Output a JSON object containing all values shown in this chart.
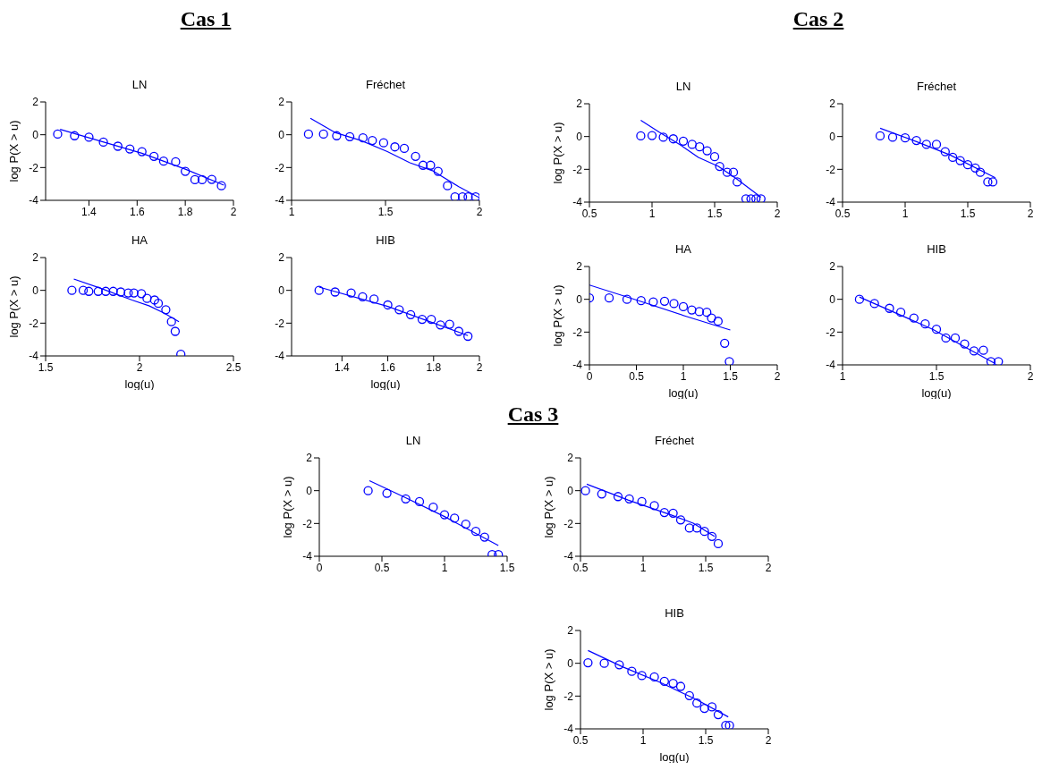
{
  "chart_data": [
    {
      "type": "scatter",
      "title": "LN",
      "ylabel": "log P(X > u)",
      "annotations": [
        "Cas 1"
      ],
      "xlim": [
        1.22,
        2
      ],
      "xticks": [
        1.4,
        1.6,
        1.8,
        2
      ],
      "ylim": [
        -4,
        2
      ],
      "yticks": [
        -4,
        -2,
        0,
        2
      ],
      "series": [
        {
          "type": "scatter",
          "marker": "circle",
          "color": "#0000ff",
          "x": [
            1.27,
            1.34,
            1.4,
            1.46,
            1.52,
            1.57,
            1.62,
            1.67,
            1.71,
            1.76,
            1.8,
            1.84,
            1.87,
            1.91,
            1.95
          ],
          "values": [
            0.04,
            -0.06,
            -0.15,
            -0.45,
            -0.7,
            -0.87,
            -1.03,
            -1.32,
            -1.61,
            -1.65,
            -2.23,
            -2.74,
            -2.74,
            -2.72,
            -3.11
          ]
        },
        {
          "type": "line",
          "marker": "none",
          "color": "#0000ff",
          "x": [
            1.28,
            1.62,
            1.8,
            1.96
          ],
          "values": [
            0.33,
            -1.13,
            -2.1,
            -3.07
          ]
        }
      ]
    },
    {
      "type": "scatter",
      "title": "Fréchet",
      "xlim": [
        1,
        2
      ],
      "xticks": [
        1,
        1.5,
        2
      ],
      "ylim": [
        -4,
        2
      ],
      "yticks": [
        -4,
        -2,
        0,
        2
      ],
      "series": [
        {
          "type": "scatter",
          "marker": "circle",
          "color": "#0000ff",
          "x": [
            1.09,
            1.17,
            1.24,
            1.31,
            1.38,
            1.43,
            1.49,
            1.55,
            1.6,
            1.66,
            1.7,
            1.74,
            1.78,
            1.83,
            1.87,
            1.91,
            1.94,
            1.98
          ],
          "values": [
            0.04,
            0.04,
            -0.06,
            -0.12,
            -0.19,
            -0.35,
            -0.49,
            -0.74,
            -0.83,
            -1.32,
            -1.86,
            -1.86,
            -2.23,
            -3.11,
            -3.79,
            -3.79,
            -3.79,
            -3.79
          ]
        },
        {
          "type": "line",
          "marker": "none",
          "color": "#0000ff",
          "x": [
            1.1,
            1.23,
            1.37,
            1.51,
            1.63,
            1.75,
            1.89,
            2.0
          ],
          "values": [
            1.01,
            0.14,
            -0.35,
            -1.03,
            -1.71,
            -2.19,
            -3.17,
            -3.84
          ]
        }
      ]
    },
    {
      "type": "scatter",
      "title": "HA",
      "xlabel": "log(u)",
      "ylabel": "log P(X > u)",
      "xlim": [
        1.5,
        2.5
      ],
      "xticks": [
        1.5,
        2,
        2.5
      ],
      "ylim": [
        -4,
        2
      ],
      "yticks": [
        -4,
        -2,
        0,
        2
      ],
      "series": [
        {
          "type": "scatter",
          "marker": "circle",
          "color": "#0000ff",
          "x": [
            1.64,
            1.7,
            1.73,
            1.78,
            1.82,
            1.86,
            1.9,
            1.94,
            1.97,
            2.01,
            2.04,
            2.08,
            2.1,
            2.14,
            2.17,
            2.19,
            2.22
          ],
          "values": [
            0,
            0,
            -0.06,
            -0.06,
            -0.06,
            -0.06,
            -0.1,
            -0.16,
            -0.16,
            -0.2,
            -0.49,
            -0.59,
            -0.79,
            -1.18,
            -1.91,
            -2.5,
            -3.9
          ]
        },
        {
          "type": "line",
          "marker": "none",
          "color": "#0000ff",
          "x": [
            1.65,
            1.79,
            1.96,
            2.05,
            2.13,
            2.21
          ],
          "values": [
            0.69,
            0.14,
            -0.59,
            -0.94,
            -1.38,
            -1.91
          ]
        }
      ]
    },
    {
      "type": "scatter",
      "title": "HIB",
      "xlabel": "log(u)",
      "xlim": [
        1.18,
        2
      ],
      "xticks": [
        1.4,
        1.6,
        1.8,
        2
      ],
      "ylim": [
        -4,
        2
      ],
      "yticks": [
        -4,
        -2,
        0,
        2
      ],
      "series": [
        {
          "type": "scatter",
          "marker": "circle",
          "color": "#0000ff",
          "x": [
            1.3,
            1.37,
            1.44,
            1.49,
            1.54,
            1.6,
            1.65,
            1.7,
            1.75,
            1.79,
            1.83,
            1.87,
            1.91,
            1.95
          ],
          "values": [
            0,
            -0.1,
            -0.16,
            -0.39,
            -0.53,
            -0.89,
            -1.18,
            -1.48,
            -1.77,
            -1.77,
            -2.11,
            -2.07,
            -2.5,
            -2.8
          ]
        },
        {
          "type": "line",
          "marker": "none",
          "color": "#0000ff",
          "x": [
            1.3,
            1.6,
            1.95
          ],
          "values": [
            0.2,
            -0.98,
            -2.76
          ]
        }
      ]
    },
    {
      "type": "scatter",
      "title": "LN",
      "ylabel": "log P(X > u)",
      "annotations": [
        "Cas 2"
      ],
      "xlim": [
        0.5,
        2
      ],
      "xticks": [
        0.5,
        1,
        1.5,
        2
      ],
      "ylim": [
        -4,
        2
      ],
      "yticks": [
        -4,
        -2,
        0,
        2
      ],
      "series": [
        {
          "type": "scatter",
          "marker": "circle",
          "color": "#0000ff",
          "x": [
            0.91,
            1.0,
            1.09,
            1.17,
            1.25,
            1.32,
            1.38,
            1.44,
            1.5,
            1.54,
            1.6,
            1.65,
            1.68,
            1.75,
            1.79,
            1.83,
            1.87
          ],
          "values": [
            0.04,
            0.06,
            -0.04,
            -0.14,
            -0.28,
            -0.48,
            -0.63,
            -0.87,
            -1.23,
            -1.82,
            -2.18,
            -2.18,
            -2.77,
            -3.8,
            -3.8,
            -3.8,
            -3.8
          ]
        },
        {
          "type": "line",
          "marker": "none",
          "color": "#0000ff",
          "x": [
            0.91,
            1.06,
            1.22,
            1.37,
            1.53,
            1.68,
            1.87
          ],
          "values": [
            0.99,
            0.26,
            -0.48,
            -1.27,
            -1.82,
            -2.61,
            -3.7
          ]
        }
      ]
    },
    {
      "type": "scatter",
      "title": "Fréchet",
      "xlim": [
        0.5,
        2
      ],
      "xticks": [
        0.5,
        1,
        1.5,
        2
      ],
      "ylim": [
        -4,
        2
      ],
      "yticks": [
        -4,
        -2,
        0,
        2
      ],
      "series": [
        {
          "type": "scatter",
          "marker": "circle",
          "color": "#0000ff",
          "x": [
            0.8,
            0.9,
            1.0,
            1.09,
            1.17,
            1.25,
            1.32,
            1.38,
            1.44,
            1.5,
            1.56,
            1.6,
            1.66,
            1.7
          ],
          "values": [
            0.04,
            -0.04,
            -0.08,
            -0.24,
            -0.48,
            -0.48,
            -0.93,
            -1.27,
            -1.47,
            -1.72,
            -1.92,
            -2.18,
            -2.77,
            -2.77
          ]
        },
        {
          "type": "line",
          "marker": "none",
          "color": "#0000ff",
          "x": [
            0.8,
            1.1,
            1.36,
            1.72
          ],
          "values": [
            0.51,
            -0.34,
            -1.13,
            -2.51
          ]
        }
      ]
    },
    {
      "type": "scatter",
      "title": "HA",
      "xlabel": "log(u)",
      "ylabel": "log P(X > u)",
      "xlim": [
        0,
        2
      ],
      "xticks": [
        0,
        0.5,
        1,
        1.5,
        2
      ],
      "ylim": [
        -4,
        2
      ],
      "yticks": [
        -4,
        -2,
        0,
        2
      ],
      "series": [
        {
          "type": "scatter",
          "marker": "circle",
          "color": "#0000ff",
          "x": [
            0,
            0.21,
            0.4,
            0.55,
            0.68,
            0.8,
            0.9,
            1.0,
            1.09,
            1.17,
            1.25,
            1.3,
            1.37,
            1.44,
            1.49
          ],
          "values": [
            0.08,
            0.08,
            0,
            -0.08,
            -0.16,
            -0.12,
            -0.26,
            -0.45,
            -0.65,
            -0.75,
            -0.79,
            -1.14,
            -1.34,
            -2.68,
            -3.8
          ]
        },
        {
          "type": "line",
          "marker": "none",
          "color": "#0000ff",
          "x": [
            0,
            0.51,
            1.03,
            1.5
          ],
          "values": [
            0.87,
            -0.06,
            -1.04,
            -1.87
          ]
        }
      ]
    },
    {
      "type": "scatter",
      "title": "HIB",
      "xlabel": "log(u)",
      "xlim": [
        1,
        2
      ],
      "xticks": [
        1,
        1.5,
        2
      ],
      "ylim": [
        -4,
        2
      ],
      "yticks": [
        -4,
        -2,
        0,
        2
      ],
      "series": [
        {
          "type": "scatter",
          "marker": "circle",
          "color": "#0000ff",
          "x": [
            1.09,
            1.17,
            1.25,
            1.31,
            1.38,
            1.44,
            1.5,
            1.55,
            1.6,
            1.65,
            1.7,
            1.75,
            1.79,
            1.83
          ],
          "values": [
            0,
            -0.26,
            -0.55,
            -0.79,
            -1.14,
            -1.5,
            -1.83,
            -2.36,
            -2.36,
            -2.72,
            -3.15,
            -3.11,
            -3.8,
            -3.8
          ]
        },
        {
          "type": "line",
          "marker": "none",
          "color": "#0000ff",
          "x": [
            1.09,
            1.48,
            1.81
          ],
          "values": [
            0.14,
            -1.83,
            -3.9
          ]
        }
      ]
    },
    {
      "type": "scatter",
      "title": "LN",
      "ylabel": "log P(X > u)",
      "annotations": [
        "Cas 3"
      ],
      "xlim": [
        0,
        1.5
      ],
      "xticks": [
        0,
        0.5,
        1,
        1.5
      ],
      "ylim": [
        -4,
        2
      ],
      "yticks": [
        -4,
        -2,
        0,
        2
      ],
      "series": [
        {
          "type": "scatter",
          "marker": "circle",
          "color": "#0000ff",
          "x": [
            0.39,
            0.54,
            0.69,
            0.8,
            0.91,
            1.0,
            1.08,
            1.17,
            1.25,
            1.32,
            1.38,
            1.43
          ],
          "values": [
            0,
            -0.16,
            -0.5,
            -0.67,
            -1.01,
            -1.47,
            -1.68,
            -2.04,
            -2.48,
            -2.83,
            -3.9,
            -3.9
          ]
        },
        {
          "type": "line",
          "marker": "none",
          "color": "#0000ff",
          "x": [
            0.4,
            0.67,
            1.0,
            1.43
          ],
          "values": [
            0.61,
            -0.36,
            -1.58,
            -3.35
          ]
        }
      ]
    },
    {
      "type": "scatter",
      "title": "Fréchet",
      "ylabel": "log P(X > u)",
      "xlim": [
        0.5,
        2
      ],
      "xticks": [
        0.5,
        1,
        1.5,
        2
      ],
      "ylim": [
        -4,
        2
      ],
      "yticks": [
        -4,
        -2,
        0,
        2
      ],
      "series": [
        {
          "type": "scatter",
          "marker": "circle",
          "color": "#0000ff",
          "x": [
            0.54,
            0.67,
            0.8,
            0.89,
            0.99,
            1.09,
            1.17,
            1.24,
            1.3,
            1.37,
            1.43,
            1.49,
            1.55,
            1.6
          ],
          "values": [
            0,
            -0.2,
            -0.36,
            -0.5,
            -0.67,
            -0.91,
            -1.33,
            -1.37,
            -1.78,
            -2.28,
            -2.28,
            -2.48,
            -2.79,
            -3.23
          ]
        },
        {
          "type": "line",
          "marker": "none",
          "color": "#0000ff",
          "x": [
            0.55,
            0.88,
            1.22,
            1.4,
            1.57
          ],
          "values": [
            0.4,
            -0.57,
            -1.47,
            -1.98,
            -2.79
          ]
        }
      ]
    },
    {
      "type": "scatter",
      "title": "HIB",
      "xlabel": "log(u)",
      "ylabel": "log P(X > u)",
      "xlim": [
        0.5,
        2
      ],
      "xticks": [
        0.5,
        1,
        1.5,
        2
      ],
      "ylim": [
        -4,
        2
      ],
      "yticks": [
        -4,
        -2,
        0,
        2
      ],
      "series": [
        {
          "type": "scatter",
          "marker": "circle",
          "color": "#0000ff",
          "x": [
            0.56,
            0.69,
            0.81,
            0.91,
            0.99,
            1.09,
            1.17,
            1.24,
            1.3,
            1.37,
            1.43,
            1.49,
            1.55,
            1.6,
            1.66,
            1.69
          ],
          "values": [
            0.03,
            0,
            -0.09,
            -0.49,
            -0.75,
            -0.83,
            -1.1,
            -1.22,
            -1.41,
            -1.97,
            -2.43,
            -2.75,
            -2.66,
            -3.13,
            -3.79,
            -3.79
          ]
        },
        {
          "type": "line",
          "marker": "none",
          "color": "#0000ff",
          "x": [
            0.56,
            0.84,
            1.14,
            1.43,
            1.68
          ],
          "values": [
            0.78,
            -0.23,
            -1.18,
            -2.23,
            -3.27
          ]
        }
      ]
    }
  ]
}
